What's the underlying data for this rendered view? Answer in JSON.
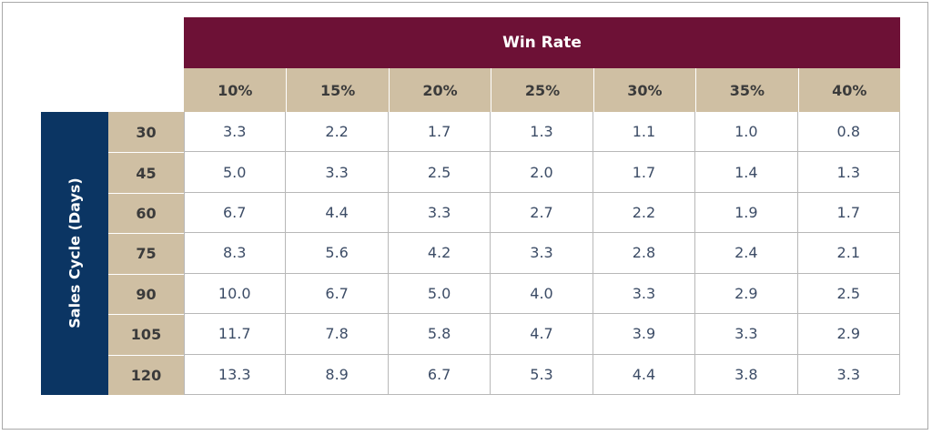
{
  "chart_data": {
    "type": "table",
    "column_group_label": "Win Rate",
    "row_group_label": "Sales Cycle (Days)",
    "columns": [
      "10%",
      "15%",
      "20%",
      "25%",
      "30%",
      "35%",
      "40%"
    ],
    "rows": [
      "30",
      "45",
      "60",
      "75",
      "90",
      "105",
      "120"
    ],
    "values": [
      [
        "3.3",
        "2.2",
        "1.7",
        "1.3",
        "1.1",
        "1.0",
        "0.8"
      ],
      [
        "5.0",
        "3.3",
        "2.5",
        "2.0",
        "1.7",
        "1.4",
        "1.3"
      ],
      [
        "6.7",
        "4.4",
        "3.3",
        "2.7",
        "2.2",
        "1.9",
        "1.7"
      ],
      [
        "8.3",
        "5.6",
        "4.2",
        "3.3",
        "2.8",
        "2.4",
        "2.1"
      ],
      [
        "10.0",
        "6.7",
        "5.0",
        "4.0",
        "3.3",
        "2.9",
        "2.5"
      ],
      [
        "11.7",
        "7.8",
        "5.8",
        "4.7",
        "3.9",
        "3.3",
        "2.9"
      ],
      [
        "13.3",
        "8.9",
        "6.7",
        "5.3",
        "4.4",
        "3.8",
        "3.3"
      ]
    ],
    "colors": {
      "win_rate_header": "#6d1136",
      "sales_cycle_header": "#0b3563",
      "label_cells": "#cfbfa3",
      "value_text": "#3c4c66"
    }
  }
}
